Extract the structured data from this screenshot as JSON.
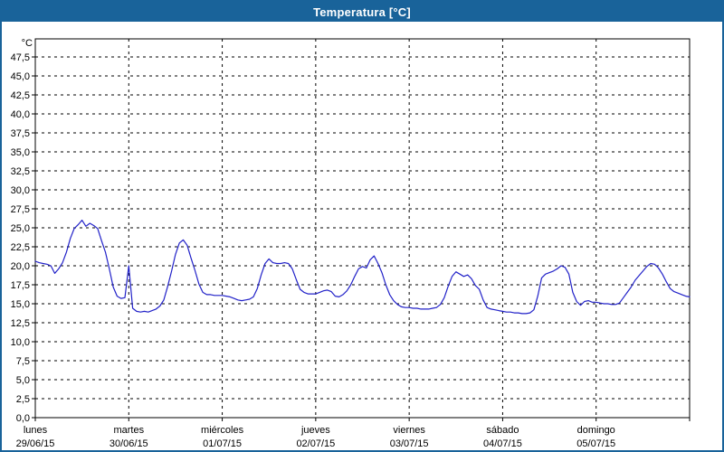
{
  "window": {
    "title": "Temperatura [°C]",
    "titlebar_color": "#19639a",
    "border_color": "#19639a",
    "background_color": "#ffffff"
  },
  "chart_data": {
    "type": "line",
    "title": "Temperatura [°C]",
    "unit_label": "°C",
    "line_color": "#2121c8",
    "grid": true,
    "grid_style": "dashed-black",
    "legend_position": "none",
    "ylim": [
      0,
      49.9
    ],
    "y_tick_step": 2.5,
    "y_tick_labels": [
      "0,0",
      "2,5",
      "5,0",
      "7,5",
      "10,0",
      "12,5",
      "15,0",
      "17,5",
      "20,0",
      "22,5",
      "25,0",
      "27,5",
      "30,0",
      "32,5",
      "35,0",
      "37,5",
      "40,0",
      "42,5",
      "45,0",
      "47,5"
    ],
    "x_days": [
      {
        "name": "lunes",
        "date": "29/06/15"
      },
      {
        "name": "martes",
        "date": "30/06/15"
      },
      {
        "name": "miércoles",
        "date": "01/07/15"
      },
      {
        "name": "jueves",
        "date": "02/07/15"
      },
      {
        "name": "viernes",
        "date": "03/07/15"
      },
      {
        "name": "sábado",
        "date": "04/07/15"
      },
      {
        "name": "domingo",
        "date": "05/07/15"
      }
    ],
    "sampling": "hourly",
    "x_hours_span": 168,
    "series": [
      {
        "name": "Temperatura",
        "values": [
          20.6,
          20.4,
          20.3,
          20.2,
          20.0,
          19.0,
          19.6,
          20.4,
          21.8,
          23.6,
          24.9,
          25.4,
          26.0,
          25.2,
          25.6,
          25.3,
          24.9,
          23.3,
          21.8,
          19.6,
          17.2,
          16.0,
          15.7,
          15.8,
          20.0,
          14.4,
          14.0,
          13.9,
          14.0,
          13.9,
          14.1,
          14.3,
          14.7,
          15.5,
          17.3,
          19.3,
          21.5,
          23.0,
          23.4,
          22.7,
          21.0,
          19.4,
          17.6,
          16.5,
          16.2,
          16.2,
          16.1,
          16.1,
          16.1,
          16.0,
          15.9,
          15.7,
          15.5,
          15.4,
          15.5,
          15.6,
          15.9,
          17.0,
          18.8,
          20.3,
          20.9,
          20.4,
          20.3,
          20.3,
          20.4,
          20.3,
          19.6,
          18.2,
          16.9,
          16.5,
          16.3,
          16.3,
          16.3,
          16.5,
          16.7,
          16.8,
          16.6,
          16.0,
          15.9,
          16.2,
          16.7,
          17.5,
          18.6,
          19.6,
          19.9,
          19.7,
          20.8,
          21.3,
          20.3,
          19.1,
          17.5,
          16.2,
          15.4,
          14.9,
          14.6,
          14.5,
          14.5,
          14.4,
          14.4,
          14.3,
          14.3,
          14.3,
          14.4,
          14.5,
          14.9,
          15.8,
          17.3,
          18.6,
          19.2,
          18.9,
          18.6,
          18.8,
          18.3,
          17.4,
          16.9,
          15.5,
          14.5,
          14.3,
          14.2,
          14.1,
          14.0,
          13.9,
          13.9,
          13.8,
          13.8,
          13.7,
          13.7,
          13.8,
          14.2,
          16.0,
          18.4,
          18.9,
          19.1,
          19.3,
          19.6,
          20.0,
          19.8,
          18.9,
          16.5,
          15.3,
          14.8,
          15.3,
          15.4,
          15.2,
          15.2,
          15.1,
          15.0,
          15.0,
          14.9,
          14.9,
          15.1,
          15.8,
          16.5,
          17.2,
          18.1,
          18.7,
          19.3,
          19.9,
          20.3,
          20.2,
          19.7,
          18.9,
          17.9,
          17.0,
          16.6,
          16.4,
          16.2,
          16.0,
          15.9
        ]
      }
    ]
  }
}
